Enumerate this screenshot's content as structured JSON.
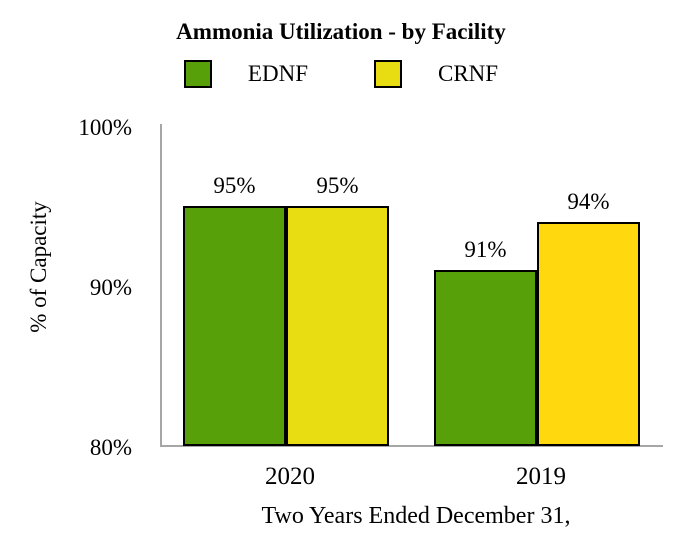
{
  "title": "Ammonia Utilization - by Facility",
  "legend": {
    "items": [
      {
        "label": "EDNF",
        "color": "#57a00a"
      },
      {
        "label": "CRNF",
        "color": "#e8dc13"
      }
    ]
  },
  "chart_data": {
    "type": "bar",
    "title": "Ammonia Utilization - by Facility",
    "xlabel": "Two Years Ended December 31,",
    "ylabel": "% of Capacity",
    "categories": [
      "2020",
      "2019"
    ],
    "series": [
      {
        "name": "EDNF",
        "values": [
          95,
          91
        ],
        "value_labels": [
          "95%",
          "91%"
        ],
        "colors": [
          "#57a00a",
          "#57a00a"
        ]
      },
      {
        "name": "CRNF",
        "values": [
          95,
          94
        ],
        "value_labels": [
          "95%",
          "94%"
        ],
        "colors": [
          "#e8dc13",
          "#ffd90d"
        ]
      }
    ],
    "ylim": [
      80,
      100
    ],
    "yticks": [
      {
        "value": 100,
        "label": "100%"
      },
      {
        "value": 90,
        "label": "90%"
      },
      {
        "value": 80,
        "label": "80%"
      }
    ],
    "bar_border_color": "#000000",
    "axis_color": "#a6a6a6",
    "grid": false,
    "legend_position": "top"
  }
}
